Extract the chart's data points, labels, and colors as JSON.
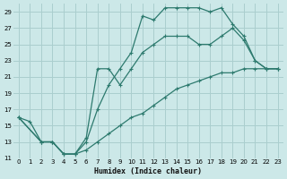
{
  "xlabel": "Humidex (Indice chaleur)",
  "bg_color": "#cce8e8",
  "grid_color": "#aacece",
  "line_color": "#2d7a6e",
  "xlim": [
    -0.5,
    23.5
  ],
  "ylim": [
    11,
    30
  ],
  "xticks": [
    0,
    1,
    2,
    3,
    4,
    5,
    6,
    7,
    8,
    9,
    10,
    11,
    12,
    13,
    14,
    15,
    16,
    17,
    18,
    19,
    20,
    21,
    22,
    23
  ],
  "yticks": [
    11,
    13,
    15,
    17,
    19,
    21,
    23,
    25,
    27,
    29
  ],
  "line1_x": [
    0,
    1,
    2,
    3,
    4,
    5,
    6,
    7,
    8,
    9,
    10,
    11,
    12,
    13,
    14,
    15,
    16,
    17,
    18,
    19,
    20,
    21,
    22,
    23
  ],
  "line1_y": [
    16,
    15.5,
    13,
    13,
    11.5,
    11.5,
    12,
    13,
    14,
    15,
    16,
    16.5,
    17.5,
    18.5,
    19.5,
    20,
    20.5,
    21,
    21.5,
    21.5,
    22,
    22,
    22,
    22
  ],
  "line2_x": [
    0,
    2,
    3,
    4,
    5,
    6,
    7,
    8,
    9,
    10,
    11,
    12,
    13,
    14,
    15,
    16,
    17,
    18,
    19,
    20,
    21,
    22,
    23
  ],
  "line2_y": [
    16,
    13,
    13,
    11.5,
    11.5,
    13,
    17,
    20,
    22,
    24,
    28.5,
    28,
    29.5,
    29.5,
    29.5,
    29.5,
    29,
    29.5,
    27.5,
    26,
    23,
    22,
    22
  ],
  "line3_x": [
    0,
    2,
    3,
    4,
    5,
    6,
    7,
    8,
    9,
    10,
    11,
    12,
    13,
    14,
    15,
    16,
    17,
    18,
    19,
    20,
    21,
    22,
    23
  ],
  "line3_y": [
    16,
    13,
    13,
    11.5,
    11.5,
    13.5,
    22,
    22,
    20,
    22,
    24,
    25,
    26,
    26,
    26,
    25,
    25,
    26,
    27,
    25.5,
    23,
    22,
    22
  ]
}
